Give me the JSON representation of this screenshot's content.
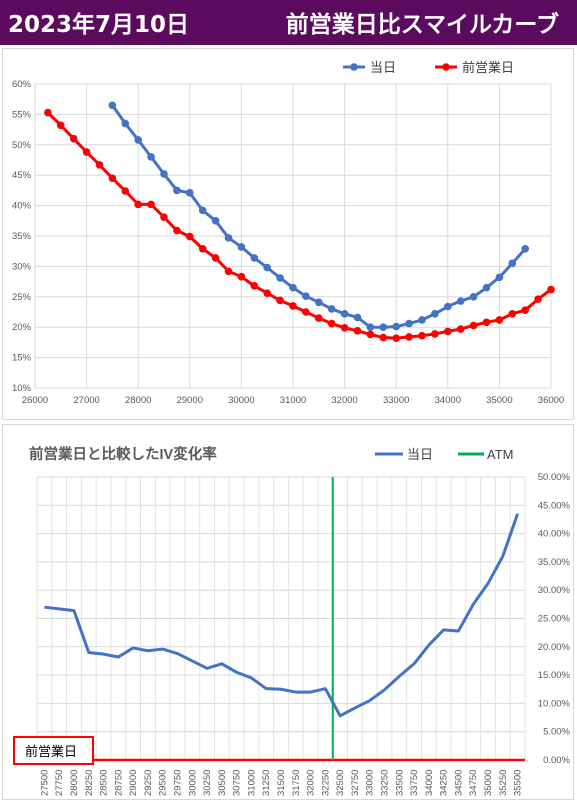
{
  "header": {
    "date": "2023年7月10日",
    "title": "前営業日比スマイルカーブ"
  },
  "colors": {
    "header_bg": "#5c0a5e",
    "today": "#4472c4",
    "prev": "#ff0000",
    "iv_change": "#4472c4",
    "atm": "#00b050",
    "baseline": "#ff0000"
  },
  "chart_data": [
    {
      "type": "line",
      "title": "",
      "xlabel": "",
      "ylabel": "",
      "xlim": [
        26000,
        36000
      ],
      "ylim": [
        0.1,
        0.6
      ],
      "x_ticks": [
        "26000",
        "27000",
        "28000",
        "29000",
        "30000",
        "31000",
        "32000",
        "33000",
        "34000",
        "35000",
        "36000"
      ],
      "y_ticks": [
        "10%",
        "15%",
        "20%",
        "25%",
        "30%",
        "35%",
        "40%",
        "45%",
        "50%",
        "55%",
        "60%"
      ],
      "legend_position": "top-right",
      "grid": true,
      "series": [
        {
          "name": "当日",
          "color": "#4472c4",
          "x": [
            27500,
            27750,
            28000,
            28250,
            28500,
            28750,
            29000,
            29250,
            29500,
            29750,
            30000,
            30250,
            30500,
            30750,
            31000,
            31250,
            31500,
            31750,
            32000,
            32250,
            32500,
            32750,
            33000,
            33250,
            33500,
            33750,
            34000,
            34250,
            34500,
            34750,
            35000,
            35250,
            35500
          ],
          "y": [
            0.565,
            0.535,
            0.508,
            0.48,
            0.452,
            0.425,
            0.421,
            0.392,
            0.375,
            0.347,
            0.332,
            0.314,
            0.298,
            0.281,
            0.265,
            0.251,
            0.241,
            0.23,
            0.222,
            0.216,
            0.2,
            0.2,
            0.201,
            0.206,
            0.212,
            0.222,
            0.234,
            0.243,
            0.25,
            0.265,
            0.282,
            0.305,
            0.329
          ]
        },
        {
          "name": "前営業日",
          "color": "#ff0000",
          "x": [
            26250,
            26500,
            26750,
            27000,
            27250,
            27500,
            27750,
            28000,
            28250,
            28500,
            28750,
            29000,
            29250,
            29500,
            29750,
            30000,
            30250,
            30500,
            30750,
            31000,
            31250,
            31500,
            31750,
            32000,
            32250,
            32500,
            32750,
            33000,
            33250,
            33500,
            33750,
            34000,
            34250,
            34500,
            34750,
            35000,
            35250,
            35500,
            35750,
            36000
          ],
          "y": [
            0.553,
            0.532,
            0.51,
            0.488,
            0.467,
            0.445,
            0.424,
            0.402,
            0.402,
            0.381,
            0.359,
            0.349,
            0.329,
            0.314,
            0.292,
            0.283,
            0.268,
            0.256,
            0.244,
            0.235,
            0.225,
            0.215,
            0.206,
            0.199,
            0.194,
            0.188,
            0.183,
            0.182,
            0.184,
            0.186,
            0.189,
            0.193,
            0.197,
            0.203,
            0.208,
            0.212,
            0.222,
            0.228,
            0.246,
            0.262
          ]
        }
      ]
    },
    {
      "type": "line",
      "title": "前営業日と比較したIV変化率",
      "xlabel": "",
      "ylabel": "",
      "ylim": [
        0,
        0.5
      ],
      "y_ticks": [
        "0.00%",
        "5.00%",
        "10.00%",
        "15.00%",
        "20.00%",
        "25.00%",
        "30.00%",
        "35.00%",
        "40.00%",
        "45.00%",
        "50.00%"
      ],
      "legend_position": "top-right",
      "grid": true,
      "categories": [
        "27500",
        "27750",
        "28000",
        "28250",
        "28500",
        "28750",
        "29000",
        "29250",
        "29500",
        "29750",
        "30000",
        "30250",
        "30500",
        "30750",
        "31000",
        "31250",
        "31500",
        "31750",
        "32000",
        "32250",
        "32500",
        "32750",
        "33000",
        "33250",
        "33500",
        "33750",
        "34000",
        "34250",
        "34500",
        "34750",
        "35000",
        "35250",
        "35500"
      ],
      "series": [
        {
          "name": "当日",
          "color": "#4472c4",
          "values": [
            0.27,
            0.267,
            0.264,
            0.19,
            0.187,
            0.182,
            0.198,
            0.193,
            0.196,
            0.188,
            0.175,
            0.162,
            0.17,
            0.155,
            0.145,
            0.126,
            0.125,
            0.12,
            0.12,
            0.126,
            0.078,
            0.092,
            0.105,
            0.124,
            0.148,
            0.17,
            0.203,
            0.23,
            0.228,
            0.275,
            0.312,
            0.36,
            0.435
          ]
        }
      ],
      "atm": {
        "label": "ATM",
        "category": "32500",
        "color": "#00b050"
      },
      "baseline": {
        "label": "前営業日",
        "value": 0,
        "color": "#ff0000"
      }
    }
  ]
}
